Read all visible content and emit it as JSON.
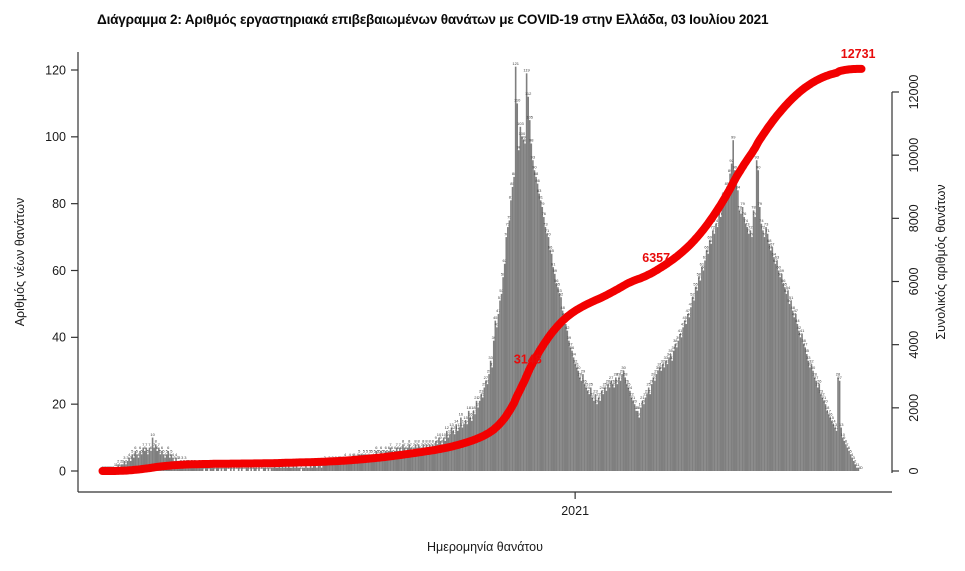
{
  "title": "Διάγραμμα 2: Αριθμός εργαστηριακά επιβεβαιωμένων θανάτων με COVID-19 στην Ελλάδα, 03 Ιουλίου 2021",
  "axes": {
    "left": {
      "label": "Αριθμός νέων θανάτων",
      "ticks": [
        0,
        20,
        40,
        60,
        80,
        100,
        120
      ]
    },
    "right": {
      "label": "Συνολικός αριθμός θανάτων",
      "ticks": [
        0,
        2000,
        4000,
        6000,
        8000,
        10000,
        12000
      ]
    },
    "bottom": {
      "label": "Ημερομηνία θανάτου",
      "ticks": [
        "2021"
      ]
    }
  },
  "chart_data": {
    "type": "bar",
    "description": "Daily laboratory-confirmed COVID-19 deaths in Greece by date of death (gray bars, left axis) with cumulative total deaths (red line, right axis)",
    "x_start": "2020-03-05",
    "x_end": "2021-07-03",
    "x_unit": "day",
    "xlabel_tick": "2021",
    "ylim_left": [
      0,
      120
    ],
    "ylim_right": [
      0,
      12000
    ],
    "grid": false,
    "legend": false,
    "series": [
      {
        "name": "daily_deaths",
        "type": "bar",
        "values": [
          0,
          0,
          0,
          0,
          0,
          0,
          0,
          0,
          1,
          1,
          2,
          1,
          2,
          2,
          3,
          2,
          3,
          4,
          3,
          5,
          4,
          6,
          5,
          4,
          6,
          5,
          7,
          6,
          7,
          5,
          7,
          6,
          10,
          7,
          8,
          6,
          7,
          5,
          6,
          5,
          4,
          5,
          6,
          4,
          5,
          4,
          3,
          4,
          3,
          3,
          2,
          3,
          2,
          3,
          2,
          2,
          1,
          2,
          1,
          2,
          1,
          1,
          2,
          1,
          1,
          0,
          1,
          1,
          0,
          1,
          2,
          1,
          0,
          1,
          1,
          0,
          1,
          0,
          1,
          1,
          0,
          0,
          1,
          0,
          1,
          0,
          0,
          1,
          0,
          1,
          0,
          0,
          1,
          1,
          0,
          1,
          0,
          1,
          1,
          0,
          1,
          0,
          0,
          1,
          1,
          0,
          1,
          0,
          1,
          1,
          2,
          1,
          1,
          2,
          1,
          2,
          1,
          2,
          1,
          2,
          1,
          1,
          2,
          1,
          2,
          1,
          1,
          0,
          1,
          1,
          2,
          1,
          1,
          2,
          1,
          2,
          2,
          1,
          2,
          2,
          1,
          2,
          3,
          2,
          2,
          3,
          2,
          3,
          2,
          3,
          2,
          3,
          3,
          2,
          3,
          4,
          3,
          3,
          4,
          3,
          4,
          4,
          3,
          4,
          5,
          4,
          4,
          5,
          4,
          5,
          4,
          5,
          5,
          4,
          5,
          6,
          5,
          5,
          6,
          5,
          5,
          6,
          5,
          6,
          7,
          6,
          5,
          6,
          7,
          6,
          7,
          6,
          8,
          7,
          6,
          7,
          8,
          7,
          6,
          7,
          8,
          7,
          8,
          6,
          7,
          8,
          7,
          8,
          7,
          8,
          7,
          8,
          7,
          9,
          8,
          10,
          9,
          8,
          10,
          9,
          12,
          10,
          11,
          13,
          12,
          11,
          14,
          12,
          13,
          16,
          13,
          14,
          15,
          14,
          18,
          16,
          15,
          18,
          17,
          21,
          19,
          21,
          23,
          22,
          25,
          27,
          26,
          29,
          33,
          31,
          39,
          45,
          43,
          47,
          51,
          53,
          58,
          62,
          70,
          73,
          75,
          81,
          85,
          88,
          121,
          110,
          96,
          103,
          100,
          99,
          98,
          119,
          112,
          105,
          98,
          93,
          90,
          88,
          86,
          83,
          81,
          79,
          76,
          73,
          71,
          70,
          66,
          65,
          61,
          59,
          56,
          55,
          53,
          52,
          48,
          46,
          44,
          42,
          39,
          37,
          36,
          34,
          32,
          31,
          30,
          28,
          27,
          29,
          26,
          25,
          24,
          23,
          25,
          22,
          21,
          23,
          20,
          22,
          21,
          24,
          23,
          25,
          24,
          26,
          25,
          27,
          26,
          25,
          28,
          26,
          28,
          27,
          29,
          30,
          28,
          26,
          25,
          24,
          22,
          21,
          20,
          18,
          18,
          16,
          19,
          21,
          20,
          22,
          23,
          25,
          23,
          26,
          28,
          27,
          29,
          30,
          31,
          30,
          32,
          31,
          33,
          32,
          34,
          35,
          33,
          36,
          38,
          37,
          39,
          41,
          40,
          43,
          45,
          44,
          47,
          46,
          49,
          52,
          51,
          55,
          54,
          58,
          57,
          61,
          60,
          63,
          66,
          65,
          69,
          68,
          72,
          71,
          74,
          73,
          77,
          76,
          79,
          82,
          81,
          85,
          84,
          89,
          92,
          99,
          90,
          86,
          84,
          78,
          77,
          79,
          76,
          74,
          73,
          71,
          72,
          70,
          78,
          76,
          93,
          90,
          79,
          74,
          72,
          70,
          73,
          71,
          68,
          66,
          67,
          64,
          62,
          63,
          60,
          58,
          59,
          56,
          55,
          53,
          54,
          50,
          51,
          48,
          46,
          47,
          44,
          42,
          40,
          41,
          38,
          37,
          35,
          33,
          31,
          32,
          30,
          28,
          27,
          25,
          26,
          23,
          22,
          21,
          20,
          18,
          17,
          16,
          15,
          14,
          13,
          12,
          28,
          27,
          13,
          10,
          9,
          8,
          7,
          6,
          5,
          4,
          3,
          2,
          1,
          1,
          0,
          0
        ]
      },
      {
        "name": "cumulative_deaths",
        "type": "line",
        "derived": "cumulative sum of daily_deaths scaled to end at 12731",
        "end_value": 12731,
        "annotations": [
          3148,
          6357,
          12731
        ]
      }
    ],
    "colors": {
      "bars": "#7f7f7f",
      "bar_labels": "#3c3c3c",
      "line": "#f20000",
      "annotation_text": "#e80b0b",
      "axis_text": "#1a1a1a",
      "axis_line": "#333333"
    }
  }
}
